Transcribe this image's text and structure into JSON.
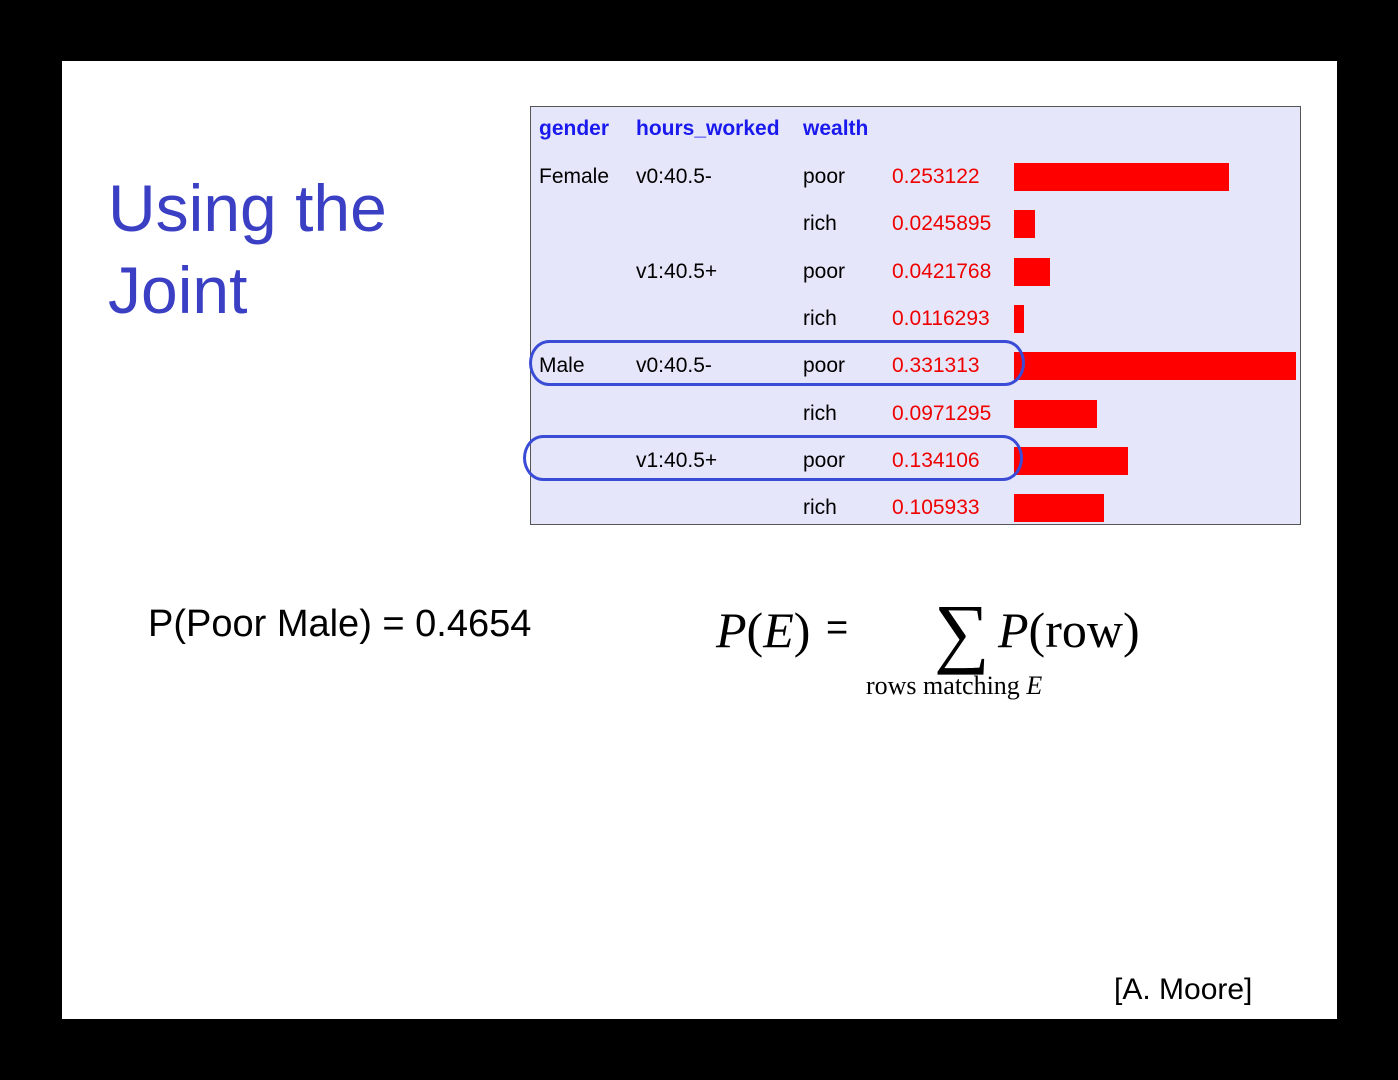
{
  "slide": {
    "title_line1": "Using the",
    "title_line2": "Joint",
    "credit": "[A. Moore]"
  },
  "table": {
    "headers": {
      "gender": "gender",
      "hours_worked": "hours_worked",
      "wealth": "wealth"
    },
    "rows": [
      {
        "gender": "Female",
        "hours": "v0:40.5-",
        "wealth": "poor",
        "prob": "0.253122",
        "value": 0.253122
      },
      {
        "gender": "",
        "hours": "",
        "wealth": "rich",
        "prob": "0.0245895",
        "value": 0.0245895
      },
      {
        "gender": "",
        "hours": "v1:40.5+",
        "wealth": "poor",
        "prob": "0.0421768",
        "value": 0.0421768
      },
      {
        "gender": "",
        "hours": "",
        "wealth": "rich",
        "prob": "0.0116293",
        "value": 0.0116293
      },
      {
        "gender": "Male",
        "hours": "v0:40.5-",
        "wealth": "poor",
        "prob": "0.331313",
        "value": 0.331313
      },
      {
        "gender": "",
        "hours": "",
        "wealth": "rich",
        "prob": "0.0971295",
        "value": 0.0971295
      },
      {
        "gender": "",
        "hours": "v1:40.5+",
        "wealth": "poor",
        "prob": "0.134106",
        "value": 0.134106
      },
      {
        "gender": "",
        "hours": "",
        "wealth": "rich",
        "prob": "0.105933",
        "value": 0.105933
      }
    ],
    "highlighted_rows": [
      4,
      6
    ],
    "bar_color": "#ff0000",
    "highlight_color": "#3a4cd6"
  },
  "formula_left": "P(Poor Male) = 0.4654",
  "formula_right": {
    "lhs_p": "P",
    "lhs_e": "E",
    "equals": "=",
    "sigma": "∑",
    "rhs_p": "P",
    "rhs_arg": "(row)",
    "subscript_text": "rows matching ",
    "subscript_var": "E"
  }
}
